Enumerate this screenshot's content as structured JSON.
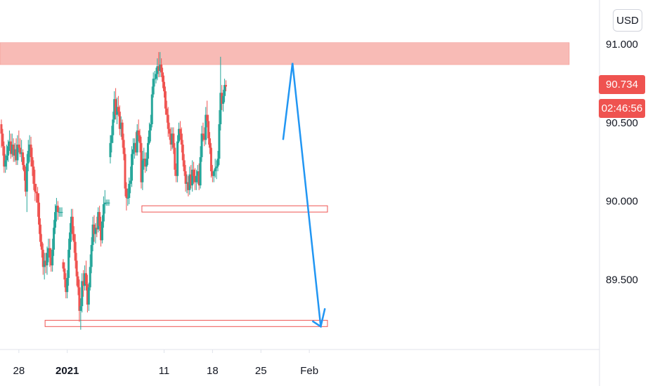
{
  "currency_label": "USD",
  "last_price_label": "90.734",
  "countdown_label": "02:46:56",
  "colors": {
    "up": "#26a69a",
    "down": "#ef5350",
    "resistance_zone": "#f8bbb6",
    "support_box": "#ef5350",
    "projection_arrow": "#2196f3",
    "axis_text": "#131722",
    "axis_line": "#e0e3eb"
  },
  "chart_data": {
    "type": "candlestick",
    "title": "",
    "xlabel": "",
    "ylabel": "",
    "ylim": [
      88.95,
      91.1
    ],
    "y_ticks": [
      "91.000",
      "90.500",
      "90.000",
      "89.500"
    ],
    "y_tick_values": [
      91.0,
      90.5,
      90.0,
      89.5
    ],
    "x_tick_labels": [
      "28",
      "2021",
      "11",
      "18",
      "25",
      "Feb"
    ],
    "x_tick_hours": [
      27,
      99,
      243,
      315,
      387,
      459
    ],
    "x_tick_bold": [
      false,
      true,
      false,
      false,
      false,
      false
    ],
    "hours_per_candle": 2,
    "last_price": 90.734,
    "ohlc": [
      [
        90.49,
        90.52,
        90.34,
        90.43
      ],
      [
        90.43,
        90.46,
        90.29,
        90.35
      ],
      [
        90.35,
        90.38,
        90.18,
        90.22
      ],
      [
        90.22,
        90.3,
        90.18,
        90.26
      ],
      [
        90.26,
        90.36,
        90.2,
        90.29
      ],
      [
        90.29,
        90.39,
        90.25,
        90.35
      ],
      [
        90.35,
        90.45,
        90.32,
        90.38
      ],
      [
        90.38,
        90.43,
        90.27,
        90.3
      ],
      [
        90.3,
        90.43,
        90.28,
        90.36
      ],
      [
        90.36,
        90.4,
        90.25,
        90.29
      ],
      [
        90.29,
        90.37,
        90.25,
        90.33
      ],
      [
        90.33,
        90.4,
        90.23,
        90.26
      ],
      [
        90.26,
        90.42,
        90.23,
        90.36
      ],
      [
        90.36,
        90.45,
        90.31,
        90.34
      ],
      [
        90.34,
        90.4,
        90.28,
        90.3
      ],
      [
        90.3,
        90.39,
        90.25,
        90.31
      ],
      [
        90.31,
        90.33,
        90.2,
        90.23
      ],
      [
        90.23,
        90.28,
        90.13,
        90.19
      ],
      [
        90.19,
        90.22,
        90.03,
        90.06
      ],
      [
        90.06,
        90.3,
        89.93,
        90.24
      ],
      [
        90.24,
        90.39,
        90.19,
        90.32
      ],
      [
        90.32,
        90.42,
        90.25,
        90.36
      ],
      [
        90.36,
        90.41,
        90.22,
        90.28
      ],
      [
        90.28,
        90.34,
        90.16,
        90.22
      ],
      [
        90.22,
        90.26,
        90.07,
        90.11
      ],
      [
        90.11,
        90.2,
        90.0,
        90.06
      ],
      [
        90.06,
        90.11,
        89.99,
        90.05
      ],
      [
        90.05,
        90.09,
        89.9,
        89.99
      ],
      [
        89.99,
        90.05,
        89.79,
        89.85
      ],
      [
        89.85,
        89.89,
        89.71,
        89.74
      ],
      [
        89.74,
        89.79,
        89.64,
        89.69
      ],
      [
        89.69,
        89.73,
        89.53,
        89.58
      ],
      [
        89.58,
        89.67,
        89.5,
        89.62
      ],
      [
        89.62,
        89.67,
        89.54,
        89.59
      ],
      [
        89.59,
        89.71,
        89.53,
        89.67
      ],
      [
        89.67,
        89.76,
        89.61,
        89.7
      ],
      [
        89.7,
        89.76,
        89.58,
        89.64
      ],
      [
        89.64,
        89.7,
        89.55,
        89.59
      ],
      [
        89.59,
        89.76,
        89.55,
        89.69
      ],
      [
        89.69,
        89.88,
        89.65,
        89.83
      ],
      [
        89.83,
        89.98,
        89.79,
        89.93
      ],
      [
        89.93,
        90.02,
        89.87,
        89.97
      ],
      [
        89.97,
        90.0,
        89.88,
        89.93
      ],
      [
        89.93,
        89.96,
        89.9,
        89.93
      ],
      [
        89.93,
        89.96,
        89.9,
        89.93
      ],
      [
        89.93,
        89.96,
        89.9,
        89.93
      ],
      [
        89.61,
        89.63,
        89.55,
        89.57
      ],
      [
        89.57,
        89.61,
        89.45,
        89.5
      ],
      [
        89.5,
        89.54,
        89.38,
        89.42
      ],
      [
        89.42,
        89.56,
        89.38,
        89.51
      ],
      [
        89.51,
        89.76,
        89.46,
        89.69
      ],
      [
        89.69,
        89.86,
        89.64,
        89.8
      ],
      [
        89.8,
        89.95,
        89.74,
        89.9
      ],
      [
        89.9,
        89.95,
        89.75,
        89.79
      ],
      [
        89.79,
        89.84,
        89.67,
        89.74
      ],
      [
        89.74,
        89.79,
        89.57,
        89.62
      ],
      [
        89.62,
        89.67,
        89.46,
        89.52
      ],
      [
        89.52,
        89.55,
        89.4,
        89.45
      ],
      [
        89.45,
        89.5,
        89.23,
        89.3
      ],
      [
        89.3,
        89.38,
        89.18,
        89.33
      ],
      [
        89.33,
        89.54,
        89.29,
        89.49
      ],
      [
        89.49,
        89.56,
        89.39,
        89.46
      ],
      [
        89.46,
        89.59,
        89.43,
        89.54
      ],
      [
        89.54,
        89.62,
        89.43,
        89.47
      ],
      [
        89.47,
        89.53,
        89.29,
        89.34
      ],
      [
        89.34,
        89.48,
        89.3,
        89.45
      ],
      [
        89.45,
        89.66,
        89.43,
        89.58
      ],
      [
        89.58,
        89.77,
        89.54,
        89.72
      ],
      [
        89.72,
        89.9,
        89.68,
        89.85
      ],
      [
        89.85,
        89.91,
        89.74,
        89.79
      ],
      [
        89.79,
        89.86,
        89.73,
        89.83
      ],
      [
        89.83,
        89.9,
        89.77,
        89.82
      ],
      [
        89.82,
        89.96,
        89.8,
        89.93
      ],
      [
        89.93,
        89.97,
        89.81,
        89.84
      ],
      [
        89.84,
        89.9,
        89.71,
        89.75
      ],
      [
        89.75,
        89.91,
        89.73,
        89.87
      ],
      [
        89.87,
        90.03,
        89.83,
        89.98
      ],
      [
        89.98,
        90.07,
        89.92,
        89.99
      ],
      [
        89.99,
        90.01,
        89.97,
        89.99
      ],
      [
        89.99,
        90.01,
        89.97,
        89.99
      ],
      [
        89.99,
        90.01,
        89.97,
        89.99
      ],
      [
        90.28,
        90.42,
        90.24,
        90.37
      ],
      [
        90.37,
        90.48,
        90.31,
        90.42
      ],
      [
        90.42,
        90.57,
        90.37,
        90.52
      ],
      [
        90.52,
        90.7,
        90.5,
        90.65
      ],
      [
        90.65,
        90.72,
        90.52,
        90.55
      ],
      [
        90.55,
        90.66,
        90.49,
        90.6
      ],
      [
        90.6,
        90.67,
        90.54,
        90.57
      ],
      [
        90.57,
        90.61,
        90.42,
        90.46
      ],
      [
        90.46,
        90.54,
        90.41,
        90.5
      ],
      [
        90.5,
        90.52,
        90.34,
        90.39
      ],
      [
        90.39,
        90.43,
        90.26,
        90.3
      ],
      [
        90.3,
        90.34,
        90.03,
        90.08
      ],
      [
        90.08,
        90.12,
        89.94,
        90.02
      ],
      [
        90.02,
        90.08,
        89.97,
        90.02
      ],
      [
        90.02,
        90.15,
        89.98,
        90.11
      ],
      [
        90.11,
        90.22,
        90.05,
        90.13
      ],
      [
        90.13,
        90.35,
        90.09,
        90.3
      ],
      [
        90.3,
        90.4,
        90.23,
        90.33
      ],
      [
        90.33,
        90.4,
        90.27,
        90.37
      ],
      [
        90.37,
        90.44,
        90.29,
        90.31
      ],
      [
        90.31,
        90.49,
        90.29,
        90.45
      ],
      [
        90.45,
        90.52,
        90.38,
        90.42
      ],
      [
        90.42,
        90.46,
        90.31,
        90.37
      ],
      [
        90.37,
        90.41,
        90.08,
        90.12
      ],
      [
        90.12,
        90.32,
        90.07,
        90.26
      ],
      [
        90.26,
        90.34,
        90.2,
        90.27
      ],
      [
        90.27,
        90.31,
        90.18,
        90.22
      ],
      [
        90.22,
        90.31,
        90.19,
        90.27
      ],
      [
        90.27,
        90.41,
        90.23,
        90.37
      ],
      [
        90.37,
        90.5,
        90.36,
        90.45
      ],
      [
        90.45,
        90.55,
        90.38,
        90.49
      ],
      [
        90.49,
        90.73,
        90.47,
        90.68
      ],
      [
        90.68,
        90.82,
        90.66,
        90.78
      ],
      [
        90.78,
        90.83,
        90.73,
        90.78
      ],
      [
        90.78,
        90.85,
        90.75,
        90.81
      ],
      [
        90.81,
        90.91,
        90.77,
        90.86
      ],
      [
        90.86,
        90.95,
        90.79,
        90.83
      ],
      [
        90.83,
        90.95,
        90.79,
        90.87
      ],
      [
        90.87,
        90.91,
        90.79,
        90.82
      ],
      [
        90.82,
        90.85,
        90.72,
        90.76
      ],
      [
        90.76,
        90.8,
        90.66,
        90.7
      ],
      [
        90.7,
        90.73,
        90.55,
        90.59
      ],
      [
        90.59,
        90.64,
        90.5,
        90.55
      ],
      [
        90.55,
        90.6,
        90.41,
        90.46
      ],
      [
        90.46,
        90.5,
        90.39,
        90.43
      ],
      [
        90.43,
        90.47,
        90.32,
        90.36
      ],
      [
        90.36,
        90.47,
        90.33,
        90.43
      ],
      [
        90.43,
        90.47,
        90.3,
        90.34
      ],
      [
        90.34,
        90.37,
        90.16,
        90.2
      ],
      [
        90.2,
        90.24,
        90.12,
        90.16
      ],
      [
        90.16,
        90.42,
        90.12,
        90.38
      ],
      [
        90.38,
        90.5,
        90.37,
        90.46
      ],
      [
        90.46,
        90.51,
        90.39,
        90.43
      ],
      [
        90.43,
        90.47,
        90.31,
        90.36
      ],
      [
        90.36,
        90.39,
        90.22,
        90.26
      ],
      [
        90.26,
        90.3,
        90.16,
        90.19
      ],
      [
        90.19,
        90.23,
        90.06,
        90.11
      ],
      [
        90.11,
        90.17,
        90.05,
        90.12
      ],
      [
        90.12,
        90.16,
        90.03,
        90.07
      ],
      [
        90.07,
        90.22,
        90.04,
        90.17
      ],
      [
        90.17,
        90.23,
        90.08,
        90.1
      ],
      [
        90.1,
        90.26,
        90.06,
        90.2
      ],
      [
        90.2,
        90.25,
        90.11,
        90.16
      ],
      [
        90.16,
        90.21,
        90.07,
        90.12
      ],
      [
        90.12,
        90.2,
        90.07,
        90.16
      ],
      [
        90.16,
        90.23,
        90.11,
        90.19
      ],
      [
        90.19,
        90.24,
        90.07,
        90.1
      ],
      [
        90.1,
        90.35,
        90.08,
        90.28
      ],
      [
        90.28,
        90.48,
        90.25,
        90.43
      ],
      [
        90.43,
        90.5,
        90.38,
        90.42
      ],
      [
        90.42,
        90.47,
        90.35,
        90.39
      ],
      [
        90.39,
        90.6,
        90.36,
        90.55
      ],
      [
        90.55,
        90.64,
        90.47,
        90.51
      ],
      [
        90.51,
        90.55,
        90.36,
        90.4
      ],
      [
        90.4,
        90.44,
        90.3,
        90.34
      ],
      [
        90.34,
        90.37,
        90.15,
        90.19
      ],
      [
        90.19,
        90.23,
        90.12,
        90.16
      ],
      [
        90.16,
        90.2,
        90.12,
        90.19
      ],
      [
        90.19,
        90.27,
        90.15,
        90.21
      ],
      [
        90.21,
        90.26,
        90.14,
        90.22
      ],
      [
        90.22,
        90.32,
        90.19,
        90.27
      ],
      [
        90.27,
        90.58,
        90.23,
        90.49
      ],
      [
        90.49,
        90.92,
        90.45,
        90.69
      ],
      [
        90.69,
        90.74,
        90.58,
        90.62
      ],
      [
        90.62,
        90.71,
        90.57,
        90.67
      ],
      [
        90.67,
        90.78,
        90.63,
        90.74
      ],
      [
        90.74,
        90.77,
        90.7,
        90.73
      ]
    ],
    "annotations": {
      "resistance_zone": {
        "y_low": 90.87,
        "y_high": 91.01
      },
      "support_zone_upper": {
        "y_low": 89.93,
        "y_high": 89.97,
        "from_hour": 210,
        "to_hour": 486
      },
      "support_zone_lower": {
        "y_low": 89.2,
        "y_high": 89.24,
        "from_hour": 66,
        "to_hour": 486
      },
      "projection_path": [
        [
          420,
          90.39
        ],
        [
          434,
          90.88
        ],
        [
          476,
          89.2
        ]
      ]
    }
  }
}
